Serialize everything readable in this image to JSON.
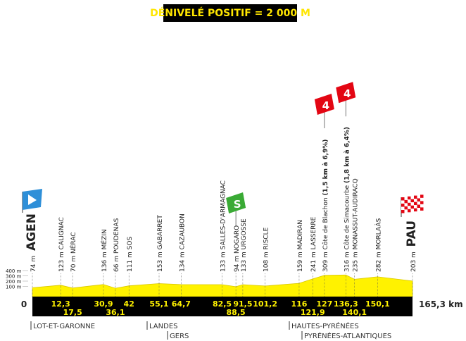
{
  "header": {
    "title": "DÉNIVELÉ POSITIF = 2 000 M"
  },
  "axis": {
    "ticks": [
      {
        "value": 400,
        "label": "400 m"
      },
      {
        "value": 300,
        "label": "300 m"
      },
      {
        "value": 200,
        "label": "200 m"
      },
      {
        "value": 100,
        "label": "100 m"
      }
    ]
  },
  "start": {
    "km": 0,
    "km_label": "0",
    "alt": 74,
    "alt_label": "74 m",
    "name": "AGEN"
  },
  "finish": {
    "km": 165.3,
    "km_label": "165,3 km",
    "alt": 203,
    "alt_label": "203 m",
    "name": "PAU"
  },
  "waypoints": [
    {
      "km": 12.3,
      "km_label": "12,3",
      "alt": 123,
      "alt_label": "123 m",
      "name": "CALIGNAC"
    },
    {
      "km": 17.5,
      "km_label": "17,5",
      "alt": 70,
      "alt_label": "70 m",
      "name": "NÉRAC"
    },
    {
      "km": 30.9,
      "km_label": "30,9",
      "alt": 136,
      "alt_label": "136 m",
      "name": "MÉZIN"
    },
    {
      "km": 36.1,
      "km_label": "36,1",
      "alt": 66,
      "alt_label": "66 m",
      "name": "POUDENAS"
    },
    {
      "km": 42,
      "km_label": "42",
      "alt": 111,
      "alt_label": "111 m",
      "name": "SOS"
    },
    {
      "km": 55.1,
      "km_label": "55,1",
      "alt": 153,
      "alt_label": "153 m",
      "name": "GABARRET"
    },
    {
      "km": 64.7,
      "km_label": "64,7",
      "alt": 134,
      "alt_label": "134 m",
      "name": "CAZAUBON"
    },
    {
      "km": 82.5,
      "km_label": "82,5",
      "alt": 133,
      "alt_label": "133 m",
      "name": "SALLES-D'ARMAGNAC"
    },
    {
      "km": 88.5,
      "km_label": "88,5",
      "alt": 94,
      "alt_label": "94 m",
      "name": "NOGARO",
      "badge": "S"
    },
    {
      "km": 91.5,
      "km_label": "91,5",
      "alt": 133,
      "alt_label": "133 m",
      "name": "URGOSSE"
    },
    {
      "km": 101.2,
      "km_label": "101,2",
      "alt": 108,
      "alt_label": "108 m",
      "name": "RISCLE"
    },
    {
      "km": 116,
      "km_label": "116",
      "alt": 159,
      "alt_label": "159 m",
      "name": "MADIRAN"
    },
    {
      "km": 121.9,
      "km_label": "121,9",
      "alt": 241,
      "alt_label": "241 m",
      "name": "LASSERRE"
    },
    {
      "km": 127,
      "km_label": "127",
      "alt": 309,
      "alt_label": "309 m",
      "name": "Côte de Blachon",
      "note": "(1,5 km à 6,9%)",
      "badge": "4"
    },
    {
      "km": 136.3,
      "km_label": "136,3",
      "alt": 316,
      "alt_label": "316 m",
      "name": "Côte de Simacourbe",
      "note": "(1,8 km à 6,4%)",
      "badge": "4"
    },
    {
      "km": 140.1,
      "km_label": "140,1",
      "alt": 235,
      "alt_label": "235 m",
      "name": "MONASSUT-AUDIRACQ"
    },
    {
      "km": 150.1,
      "km_label": "150,1",
      "alt": 282,
      "alt_label": "282 m",
      "name": "MORLAÀS"
    }
  ],
  "regions": [
    "LOT-ET-GARONNE",
    "LANDES",
    "GERS",
    "HAUTES-PYRÉNÉES",
    "PYRÉNÉES-ATLANTIQUES"
  ]
}
